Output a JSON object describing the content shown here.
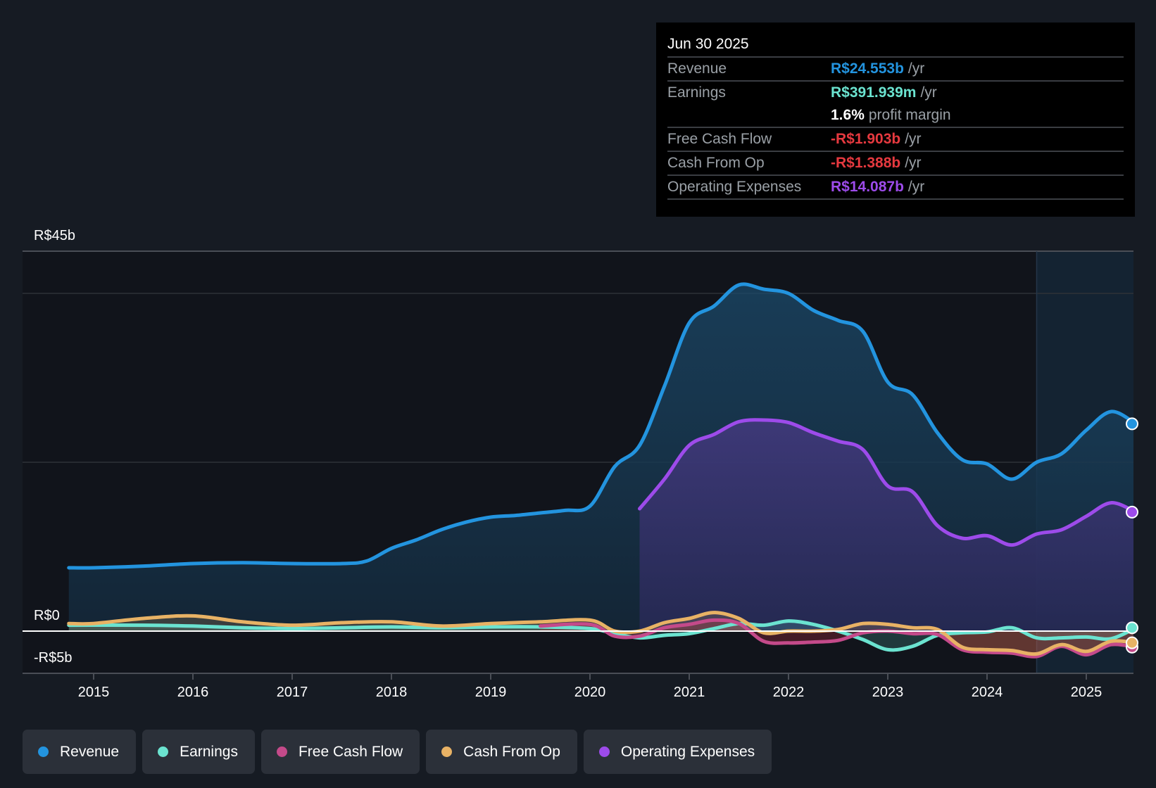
{
  "tooltip": {
    "date": "Jun 30 2025",
    "rows": [
      {
        "label": "Revenue",
        "value": "R$24.553b",
        "unit": "/yr",
        "color": "#2394df"
      },
      {
        "label": "Earnings",
        "value": "R$391.939m",
        "unit": "/yr",
        "color": "#6be3d0"
      },
      {
        "label": "",
        "value": "1.6%",
        "unit": "profit margin",
        "color": "#ffffff"
      },
      {
        "label": "Free Cash Flow",
        "value": "-R$1.903b",
        "unit": "/yr",
        "color": "#e6393f"
      },
      {
        "label": "Cash From Op",
        "value": "-R$1.388b",
        "unit": "/yr",
        "color": "#e6393f"
      },
      {
        "label": "Operating Expenses",
        "value": "R$14.087b",
        "unit": "/yr",
        "color": "#9d4bea"
      }
    ]
  },
  "legend": [
    {
      "label": "Revenue",
      "color": "#2394df"
    },
    {
      "label": "Earnings",
      "color": "#6be3d0"
    },
    {
      "label": "Free Cash Flow",
      "color": "#c44a8a"
    },
    {
      "label": "Cash From Op",
      "color": "#e8b265"
    },
    {
      "label": "Operating Expenses",
      "color": "#9d4bea"
    }
  ],
  "chart_data": {
    "type": "area",
    "title": "",
    "xlabel": "",
    "ylabel": "",
    "ylim": [
      -5,
      45
    ],
    "y_ticks": [
      {
        "value": 45,
        "label": "R$45b"
      },
      {
        "value": 0,
        "label": "R$0"
      },
      {
        "value": -5,
        "label": "-R$5b"
      }
    ],
    "gridlines": [
      45,
      40,
      20,
      0
    ],
    "x_ticks": [
      {
        "value": 2015,
        "label": "2015"
      },
      {
        "value": 2016,
        "label": "2016"
      },
      {
        "value": 2017,
        "label": "2017"
      },
      {
        "value": 2018,
        "label": "2018"
      },
      {
        "value": 2019,
        "label": "2019"
      },
      {
        "value": 2020,
        "label": "2020"
      },
      {
        "value": 2021,
        "label": "2021"
      },
      {
        "value": 2022,
        "label": "2022"
      },
      {
        "value": 2023,
        "label": "2023"
      },
      {
        "value": 2024,
        "label": "2024"
      },
      {
        "value": 2025,
        "label": "2025"
      }
    ],
    "xlim": [
      2014.3,
      2025.5
    ],
    "forecast_start": 2024.5,
    "units": "R$ billions",
    "series": [
      {
        "name": "Revenue",
        "color": "#2394df",
        "x": [
          2014.75,
          2015.0,
          2015.5,
          2016.0,
          2016.5,
          2017.0,
          2017.5,
          2017.75,
          2018.0,
          2018.25,
          2018.5,
          2018.75,
          2019.0,
          2019.25,
          2019.5,
          2019.75,
          2020.0,
          2020.25,
          2020.5,
          2020.75,
          2021.0,
          2021.25,
          2021.5,
          2021.75,
          2022.0,
          2022.25,
          2022.5,
          2022.75,
          2023.0,
          2023.25,
          2023.5,
          2023.75,
          2024.0,
          2024.25,
          2024.5,
          2024.75,
          2025.0,
          2025.25,
          2025.5
        ],
        "values": [
          7.5,
          7.5,
          7.7,
          8.0,
          8.1,
          8.0,
          8.0,
          8.3,
          9.8,
          10.8,
          12.0,
          12.9,
          13.5,
          13.7,
          14.0,
          14.3,
          14.8,
          19.5,
          22.0,
          29.0,
          36.5,
          38.5,
          41.0,
          40.5,
          40.0,
          38.0,
          36.8,
          35.5,
          29.5,
          28.0,
          23.5,
          20.3,
          19.8,
          18.0,
          20.0,
          21.0,
          23.8,
          26.0,
          24.55
        ]
      },
      {
        "name": "Operating Expenses",
        "color": "#9d4bea",
        "x": [
          2020.5,
          2020.75,
          2021.0,
          2021.25,
          2021.5,
          2021.75,
          2022.0,
          2022.25,
          2022.5,
          2022.75,
          2023.0,
          2023.25,
          2023.5,
          2023.75,
          2024.0,
          2024.25,
          2024.5,
          2024.75,
          2025.0,
          2025.25,
          2025.5
        ],
        "values": [
          14.5,
          18.0,
          22.0,
          23.3,
          24.8,
          25.0,
          24.7,
          23.5,
          22.5,
          21.5,
          17.2,
          16.5,
          12.5,
          11.0,
          11.3,
          10.2,
          11.5,
          12.0,
          13.6,
          15.2,
          14.09
        ]
      },
      {
        "name": "Earnings",
        "color": "#6be3d0",
        "x": [
          2014.75,
          2015.5,
          2016.0,
          2016.5,
          2017.0,
          2017.5,
          2018.0,
          2018.5,
          2019.0,
          2019.5,
          2020.0,
          2020.25,
          2020.5,
          2020.75,
          2021.0,
          2021.25,
          2021.5,
          2021.75,
          2022.0,
          2022.25,
          2022.5,
          2022.75,
          2023.0,
          2023.25,
          2023.5,
          2023.75,
          2024.0,
          2024.25,
          2024.5,
          2024.75,
          2025.0,
          2025.25,
          2025.5
        ],
        "values": [
          0.7,
          0.7,
          0.6,
          0.4,
          0.3,
          0.4,
          0.5,
          0.4,
          0.5,
          0.5,
          0.3,
          -0.3,
          -0.8,
          -0.5,
          -0.3,
          0.3,
          0.9,
          0.7,
          1.2,
          0.8,
          0.0,
          -1.0,
          -2.2,
          -1.8,
          -0.5,
          -0.2,
          -0.1,
          0.4,
          -0.8,
          -0.8,
          -0.7,
          -0.9,
          0.39
        ]
      },
      {
        "name": "Free Cash Flow",
        "color": "#c44a8a",
        "x": [
          2019.5,
          2020.0,
          2020.25,
          2020.5,
          2020.75,
          2021.0,
          2021.25,
          2021.5,
          2021.75,
          2022.0,
          2022.25,
          2022.5,
          2022.75,
          2023.0,
          2023.25,
          2023.5,
          2023.75,
          2024.0,
          2024.25,
          2024.5,
          2024.75,
          2025.0,
          2025.25,
          2025.5
        ],
        "values": [
          0.6,
          0.8,
          -0.6,
          -0.6,
          0.4,
          0.8,
          1.3,
          0.9,
          -1.2,
          -1.4,
          -1.3,
          -1.1,
          -0.2,
          0.0,
          -0.3,
          -0.4,
          -2.2,
          -2.5,
          -2.6,
          -3.0,
          -1.8,
          -2.8,
          -1.6,
          -1.9
        ]
      },
      {
        "name": "Cash From Op",
        "color": "#e8b265",
        "x": [
          2014.75,
          2015.0,
          2015.5,
          2016.0,
          2016.5,
          2017.0,
          2017.5,
          2018.0,
          2018.5,
          2019.0,
          2019.5,
          2020.0,
          2020.25,
          2020.5,
          2020.75,
          2021.0,
          2021.25,
          2021.5,
          2021.75,
          2022.0,
          2022.25,
          2022.5,
          2022.75,
          2023.0,
          2023.25,
          2023.5,
          2023.75,
          2024.0,
          2024.25,
          2024.5,
          2024.75,
          2025.0,
          2025.25,
          2025.5
        ],
        "values": [
          0.9,
          0.9,
          1.5,
          1.8,
          1.1,
          0.7,
          1.0,
          1.1,
          0.6,
          0.9,
          1.1,
          1.3,
          0.0,
          0.0,
          1.0,
          1.5,
          2.2,
          1.5,
          -0.2,
          0.0,
          0.0,
          0.2,
          0.9,
          0.8,
          0.4,
          0.2,
          -1.9,
          -2.2,
          -2.3,
          -2.7,
          -1.6,
          -2.4,
          -1.2,
          -1.39
        ]
      }
    ]
  }
}
